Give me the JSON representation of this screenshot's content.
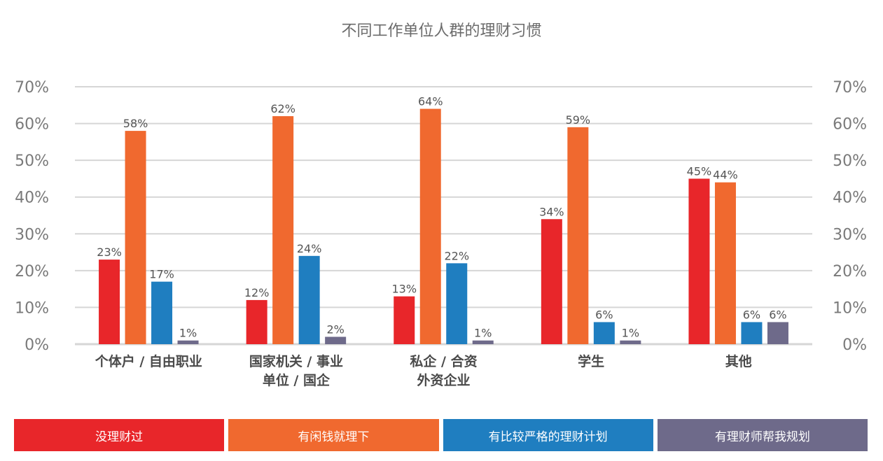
{
  "title": "不同工作单位人群的理财习惯",
  "colors": {
    "series": [
      "#e8262a",
      "#f0692f",
      "#1f7ec0",
      "#6e6a8a"
    ],
    "grid": "#d6d6d6",
    "axis_text": "#7a7a7a",
    "label_text": "#555555",
    "category_text": "#4a4a4a"
  },
  "chart_data": {
    "type": "bar",
    "title": "不同工作单位人群的理财习惯",
    "categories": [
      [
        "个体户 / 自由职业"
      ],
      [
        "国家机关 / 事业",
        "单位 / 国企"
      ],
      [
        "私企 / 合资",
        "外资企业"
      ],
      [
        "学生"
      ],
      [
        "其他"
      ]
    ],
    "series": [
      {
        "name": "没理财过",
        "values": [
          23,
          12,
          13,
          34,
          45
        ]
      },
      {
        "name": "有闲钱就理下",
        "values": [
          58,
          62,
          64,
          59,
          44
        ]
      },
      {
        "name": "有比较严格的理财计划",
        "values": [
          17,
          24,
          22,
          6,
          6
        ]
      },
      {
        "name": "有理财师帮我规划",
        "values": [
          1,
          2,
          1,
          1,
          6
        ]
      }
    ],
    "value_labels": [
      [
        "23%",
        "12%",
        "13%",
        "34%",
        "45%"
      ],
      [
        "58%",
        "62%",
        "64%",
        "59%",
        "44%"
      ],
      [
        "17%",
        "24%",
        "22%",
        "6%",
        "6%"
      ],
      [
        "1%",
        "2%",
        "1%",
        "1%",
        "6%"
      ]
    ],
    "ylim": [
      0,
      70
    ],
    "yticks": [
      "0%",
      "10%",
      "20%",
      "30%",
      "40%",
      "50%",
      "60%",
      "70%"
    ],
    "grid": true,
    "dual_y_axis": true,
    "legend_position": "bottom"
  }
}
